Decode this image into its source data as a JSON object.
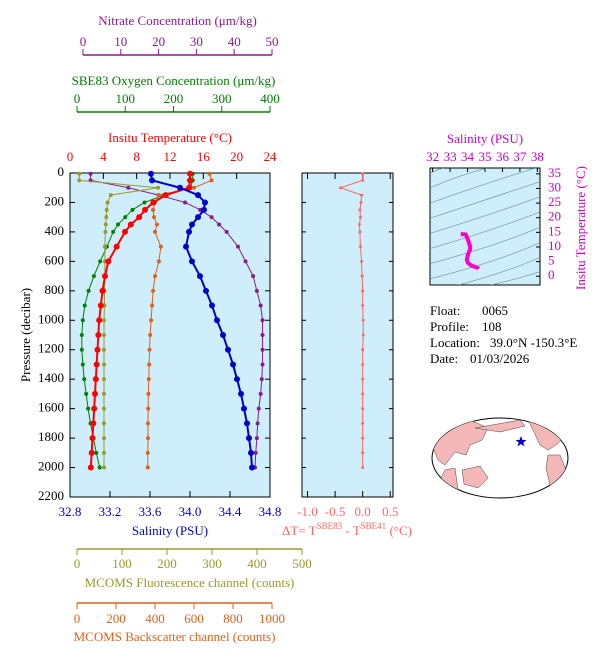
{
  "chart_data": [
    {
      "type": "profile",
      "ylabel": "Pressure (decibar)",
      "ylim": [
        0,
        2200
      ],
      "yticks": [
        0,
        200,
        400,
        600,
        800,
        1000,
        1200,
        1400,
        1600,
        1800,
        2000,
        2200
      ],
      "y": [
        5,
        50,
        100,
        150,
        200,
        250,
        300,
        350,
        400,
        500,
        600,
        700,
        800,
        900,
        1000,
        1100,
        1200,
        1300,
        1400,
        1500,
        1600,
        1700,
        1800,
        1900,
        2000
      ],
      "x_axes": [
        {
          "label": "Nitrate Concentration (μm/kg)",
          "color": "#8b1a8b",
          "xlim": [
            0,
            50
          ],
          "xticks": [
            0,
            10,
            20,
            30,
            40,
            50
          ]
        },
        {
          "label": "SBE83 Oxygen Concentration (μm/kg)",
          "color": "#008000",
          "xlim": [
            0,
            400
          ],
          "xticks": [
            0,
            100,
            200,
            300,
            400
          ]
        },
        {
          "label": "Insitu Temperature (°C)",
          "color": "#ff0000",
          "xlim": [
            0,
            24
          ],
          "xticks": [
            0,
            4,
            8,
            12,
            16,
            20,
            24
          ]
        },
        {
          "label": "Salinity (PSU)",
          "color": "#0000cc",
          "xlim": [
            32.8,
            34.8
          ],
          "xticks": [
            32.8,
            33.2,
            33.6,
            {
              "value": 34,
              "label": "34.0"
            },
            34.4,
            34.8
          ]
        },
        {
          "label": "MCOMS Fluorescence channel (counts)",
          "color": "#9a9a2a",
          "xlim": [
            0,
            500
          ],
          "xticks": [
            0,
            100,
            200,
            300,
            400,
            500
          ]
        },
        {
          "label": "MCOMS Backscatter channel (counts)",
          "color": "#e0601a",
          "xlim": [
            0,
            1000
          ],
          "xticks": [
            0,
            200,
            400,
            600,
            800,
            1000
          ]
        }
      ],
      "series": [
        {
          "axis": 0,
          "values": [
            2,
            2,
            12,
            20,
            27,
            31,
            34,
            36,
            38,
            41,
            43,
            45,
            46,
            47,
            47.5,
            47.5,
            47.5,
            47.5,
            47.3,
            47,
            46.5,
            46.2,
            46,
            45.7,
            45.5
          ]
        },
        {
          "axis": 1,
          "values": [
            240,
            240,
            235,
            180,
            140,
            115,
            100,
            85,
            75,
            62,
            48,
            35,
            24,
            16,
            12,
            10,
            10,
            12,
            15,
            19,
            23,
            28,
            34,
            40,
            47
          ]
        },
        {
          "axis": 4,
          "values": [
            5,
            5,
            180,
            75,
            68,
            66,
            65,
            64,
            63,
            62,
            62,
            62,
            61,
            61,
            60,
            60,
            60,
            60,
            60,
            60,
            60,
            60,
            60,
            60,
            60
          ]
        },
        {
          "axis": 5,
          "values": [
            680,
            690,
            600,
            420,
            400,
            390,
            395,
            410,
            400,
            430,
            420,
            400,
            390,
            385,
            380,
            375,
            372,
            370,
            368,
            366,
            365,
            364,
            364,
            363,
            363
          ]
        },
        {
          "axis": 2,
          "values": [
            14.4,
            14.4,
            14.3,
            11.5,
            10.0,
            9.0,
            8.3,
            7.3,
            6.6,
            5.6,
            4.6,
            4.2,
            3.9,
            3.7,
            3.5,
            3.4,
            3.3,
            3.2,
            3.1,
            3.0,
            2.9,
            2.8,
            2.7,
            2.6,
            2.5
          ]
        },
        {
          "axis": 3,
          "values": [
            33.61,
            33.62,
            33.9,
            34.08,
            34.15,
            34.14,
            34.08,
            34.02,
            33.99,
            33.96,
            34.02,
            34.1,
            34.16,
            34.22,
            34.27,
            34.33,
            34.38,
            34.43,
            34.47,
            34.51,
            34.54,
            34.57,
            34.59,
            34.61,
            34.62
          ]
        }
      ]
    },
    {
      "type": "delta",
      "xlabel_parts": [
        "ΔT= T",
        "SBE83",
        " - T",
        "SBE41",
        " (°C)"
      ],
      "color": "#ff6666",
      "xlim": [
        -1.1,
        0.55
      ],
      "xticks": [
        {
          "value": -1,
          "label": "-1.0"
        },
        -0.5,
        {
          "value": 0,
          "label": "0.0"
        },
        0.5
      ],
      "values": [
        0,
        0,
        -0.4,
        -0.02,
        -0.03,
        -0.05,
        -0.04,
        -0.06,
        -0.05,
        -0.04,
        -0.02,
        -0.01,
        0,
        0,
        0.01,
        0.01,
        0,
        0,
        0,
        0,
        0,
        0,
        0,
        0,
        0
      ]
    },
    {
      "type": "ts",
      "xlabel": "Salinity (PSU)",
      "ylabel": "Insitu Temperature (°C)",
      "label_color": "#cc00cc",
      "color": "#ff00cc",
      "xlim": [
        31.85,
        38.15
      ],
      "xticks": [
        32,
        33,
        34,
        35,
        36,
        37,
        38
      ],
      "ylim": [
        -3,
        37
      ],
      "yticks": [
        0,
        5,
        10,
        15,
        20,
        25,
        30,
        35
      ]
    }
  ],
  "info": [
    {
      "label": "Float:",
      "value": "0065"
    },
    {
      "label": "Profile:",
      "value": "108"
    },
    {
      "label": "Location:",
      "value": "39.0°N  -150.3°E"
    },
    {
      "label": "Date:",
      "value": "01/03/2026"
    }
  ]
}
